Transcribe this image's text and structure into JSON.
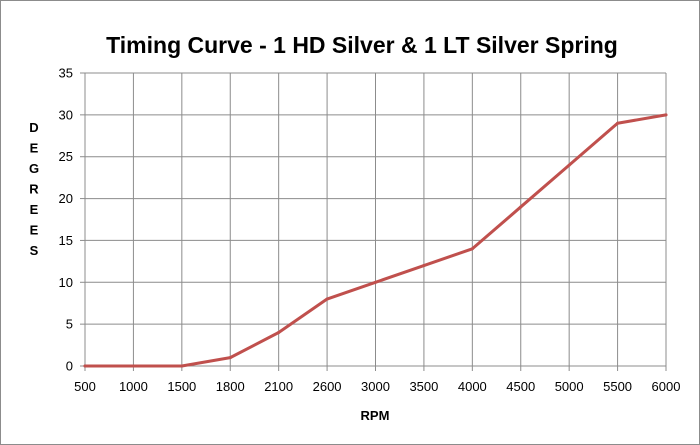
{
  "chart_data": {
    "type": "line",
    "title": "Timing Curve - 1 HD Silver & 1 LT Silver Spring",
    "xlabel": "RPM",
    "ylabel": "DEGREES",
    "categories": [
      "500",
      "1000",
      "1500",
      "1800",
      "2100",
      "2600",
      "3000",
      "3500",
      "4000",
      "4500",
      "5000",
      "5500",
      "6000"
    ],
    "series": [
      {
        "values": [
          0,
          0,
          0,
          1,
          4,
          8,
          10,
          12,
          14,
          19,
          24,
          29,
          30
        ]
      }
    ],
    "ylim": [
      0,
      35
    ],
    "yticks": [
      0,
      5,
      10,
      15,
      20,
      25,
      30,
      35
    ],
    "grid": true,
    "legend": "none",
    "colors": {
      "line": "#c0504d",
      "grid": "#8c8c8c",
      "frame": "#8c8c8c"
    }
  }
}
